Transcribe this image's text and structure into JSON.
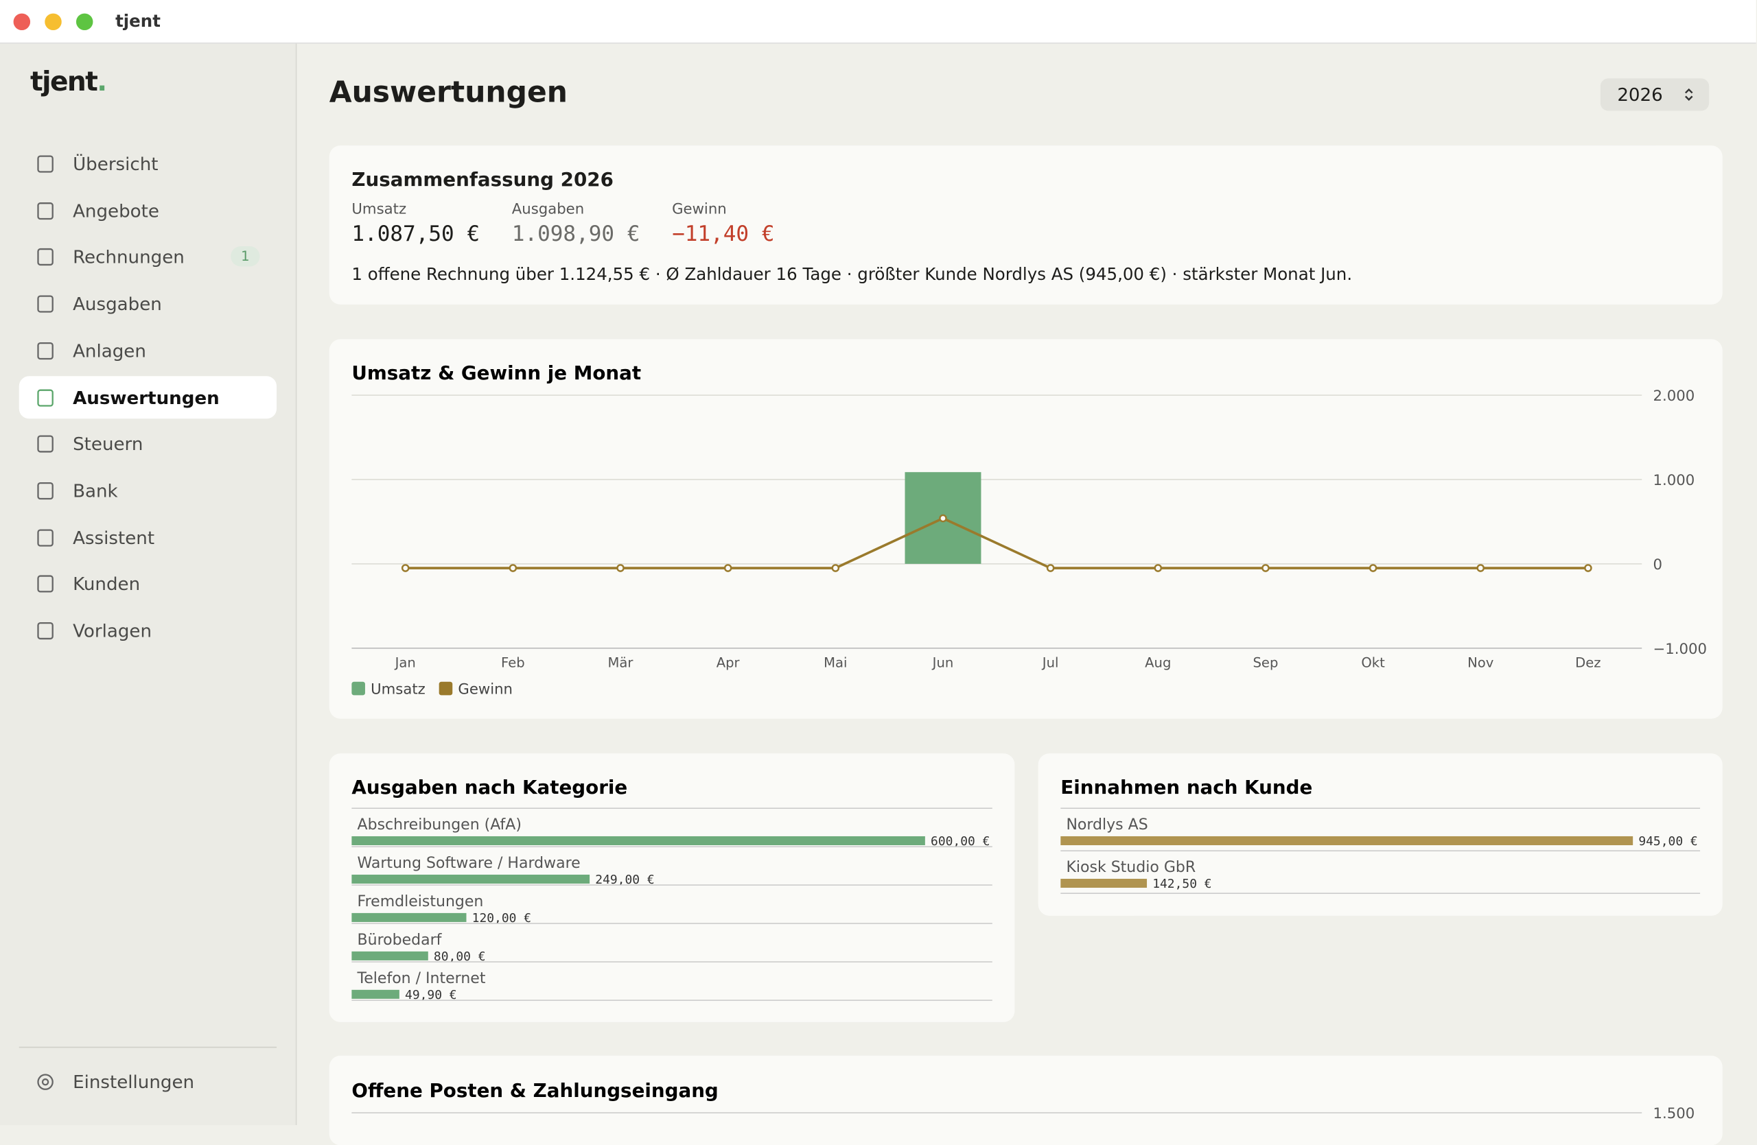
{
  "window": {
    "title": "tjent"
  },
  "sidebar": {
    "logo": "tjent",
    "logo_dot": ".",
    "items": [
      {
        "label": "Übersicht"
      },
      {
        "label": "Angebote"
      },
      {
        "label": "Rechnungen",
        "badge": "1"
      },
      {
        "label": "Ausgaben"
      },
      {
        "label": "Anlagen"
      },
      {
        "label": "Auswertungen",
        "active": true
      },
      {
        "label": "Steuern"
      },
      {
        "label": "Bank"
      },
      {
        "label": "Assistent"
      },
      {
        "label": "Kunden"
      },
      {
        "label": "Vorlagen"
      }
    ],
    "footer": "Einstellungen"
  },
  "header": {
    "title": "Auswertungen",
    "year": "2026"
  },
  "summary": {
    "title": "Zusammenfassung 2026",
    "metrics": [
      {
        "label": "Umsatz",
        "value": "1.087,50 €"
      },
      {
        "label": "Ausgaben",
        "value": "1.098,90 €"
      },
      {
        "label": "Gewinn",
        "value": "−11,40 €"
      }
    ],
    "note": "1 offene Rechnung über 1.124,55 € · Ø Zahldauer 16 Tage · größter Kunde Nordlys AS (945,00 €) · stärkster Monat Jun."
  },
  "chart_data": [
    {
      "type": "bar-line",
      "title": "Umsatz & Gewinn je Monat",
      "categories": [
        "Jan",
        "Feb",
        "Mär",
        "Apr",
        "Mai",
        "Jun",
        "Jul",
        "Aug",
        "Sep",
        "Okt",
        "Nov",
        "Dez"
      ],
      "series": [
        {
          "name": "Umsatz",
          "kind": "bar",
          "color": "#6dab7b",
          "values": [
            0,
            0,
            0,
            0,
            0,
            1087.5,
            0,
            0,
            0,
            0,
            0,
            0
          ]
        },
        {
          "name": "Gewinn",
          "kind": "line",
          "color": "#9a7a2c",
          "values": [
            -50,
            -50,
            -50,
            -50,
            -50,
            540,
            -50,
            -50,
            -50,
            -50,
            -50,
            -50
          ]
        }
      ],
      "ylim": [
        -1000,
        2000
      ],
      "yticks": [
        {
          "value": -1000,
          "label": "−1.000"
        },
        0,
        {
          "value": 1000,
          "label": "1.000"
        },
        {
          "value": 2000,
          "label": "2.000"
        }
      ],
      "grid": true,
      "legend": "bottom-left"
    },
    {
      "type": "hbar",
      "title": "Ausgaben nach Kategorie",
      "color": "#6dab7b",
      "categories": [
        "Abschreibungen (AfA)",
        "Wartung Software / Hardware",
        "Fremdleistungen",
        "Bürobedarf",
        "Telefon / Internet"
      ],
      "values": [
        600,
        249,
        120,
        80,
        49.9
      ],
      "value_labels": [
        "600,00 €",
        "249,00 €",
        "120,00 €",
        "80,00 €",
        "49,90 €"
      ]
    },
    {
      "type": "hbar",
      "title": "Einnahmen nach Kunde",
      "color": "#b09450",
      "categories": [
        "Nordlys AS",
        "Kiosk Studio GbR"
      ],
      "values": [
        945,
        142.5
      ],
      "value_labels": [
        "945,00 €",
        "142,50 €"
      ]
    },
    {
      "type": "partial",
      "title": "Offene Posten & Zahlungseingang",
      "yticks": [
        {
          "value": 1500,
          "label": "1.500"
        }
      ]
    }
  ]
}
